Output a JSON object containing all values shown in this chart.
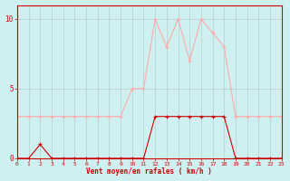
{
  "hours": [
    0,
    1,
    2,
    3,
    4,
    5,
    6,
    7,
    8,
    9,
    10,
    11,
    12,
    13,
    14,
    15,
    16,
    17,
    18,
    19,
    20,
    21,
    22,
    23
  ],
  "vent_moyen": [
    0,
    0,
    1,
    0,
    0,
    0,
    0,
    0,
    0,
    0,
    0,
    0,
    3,
    3,
    3,
    3,
    3,
    3,
    3,
    0,
    0,
    0,
    0,
    0
  ],
  "rafales": [
    3,
    3,
    3,
    3,
    3,
    3,
    3,
    3,
    3,
    3,
    5,
    5,
    10,
    8,
    10,
    7,
    10,
    9,
    8,
    3,
    3,
    3,
    3,
    3
  ],
  "color_moyen": "#cc0000",
  "color_rafales": "#ffaaaa",
  "bg_color": "#cff0f0",
  "grid_color": "#bbcccc",
  "xlabel": "Vent moyen/en rafales ( km/h )",
  "ylabel_ticks": [
    0,
    5,
    10
  ],
  "xlim": [
    0,
    23
  ],
  "ylim": [
    0,
    11
  ],
  "axis_color": "#cc0000"
}
